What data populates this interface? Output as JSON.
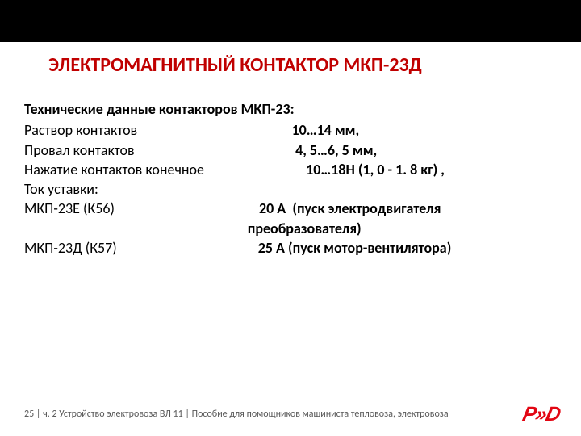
{
  "title": "ЭЛЕКТРОМАГНИТНЫЙ КОНТАКТОР МКП-23Д",
  "subtitle": "Технические данные контакторов МКП-23:",
  "rows": [
    {
      "label": "Раствор контактов",
      "spacer": "                                               ",
      "value": "10…14 мм,"
    },
    {
      "label": "Провал контактов",
      "spacer": "                                                 ",
      "value": "4, 5…6, 5 мм,"
    },
    {
      "label": "Нажатие контактов конечное",
      "spacer": "                               ",
      "value": "10…18Н (1, 0 - 1. 8 кг) ,"
    },
    {
      "label": "Ток уставки:",
      "spacer": "",
      "value": ""
    },
    {
      "label": "МКП-23Е (К56)",
      "spacer": "                                            ",
      "value": "20 А  (пуск электродвигателя"
    },
    {
      "label": "",
      "spacer": "                                                                    ",
      "value": "преобразователя)"
    },
    {
      "label": "МКП-23Д (К57)",
      "spacer": "                                           ",
      "value": "25 А (пуск мотор-вентилятора)"
    }
  ],
  "footer": "25 | ч. 2  Устройство электровоза ВЛ 11  | Пособие для помощников машиниста тепловоза, электровоза",
  "logo_text": "P»D",
  "colors": {
    "title": "#c00000",
    "text": "#000000",
    "footer": "#595959",
    "logo": "#e20613",
    "topbar": "#000000",
    "bg": "#ffffff"
  }
}
